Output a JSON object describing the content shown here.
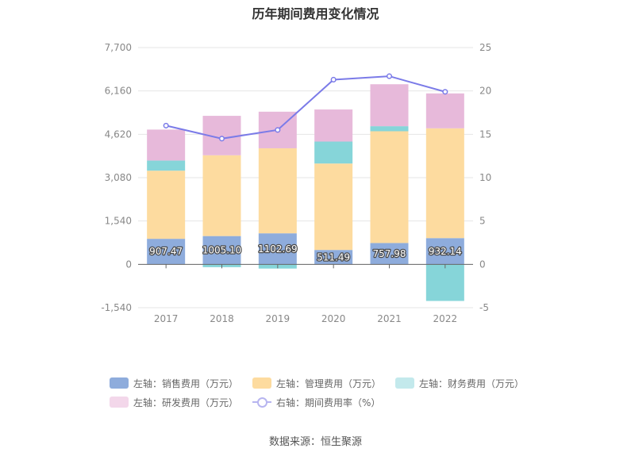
{
  "chart_data": {
    "type": "bar",
    "title": "历年期间费用变化情况",
    "categories": [
      "2017",
      "2018",
      "2019",
      "2020",
      "2021",
      "2022"
    ],
    "left_axis": {
      "ticks": [
        "7,700",
        "6,160",
        "4,620",
        "3,080",
        "1,540",
        "0",
        "-1,540"
      ],
      "ylim": [
        -1540,
        7700
      ]
    },
    "right_axis": {
      "ticks": [
        "25",
        "20",
        "15",
        "10",
        "5",
        "0",
        "-5"
      ],
      "ylim": [
        -5,
        25
      ]
    },
    "stacked": true,
    "series": [
      {
        "name": "左轴：销售费用（万元）",
        "color": "#8eacdc",
        "values": [
          907.47,
          1005.1,
          1102.69,
          511.49,
          757.98,
          932.14
        ]
      },
      {
        "name": "左轴：管理费用（万元）",
        "color": "#fddb9f",
        "values": [
          2420,
          2870,
          3020,
          3070,
          3970,
          3900
        ]
      },
      {
        "name": "左轴：财务费用（万元）",
        "color": "#86d5d9",
        "values": [
          360,
          -100,
          -150,
          780,
          180,
          -1300
        ]
      },
      {
        "name": "左轴：研发费用（万元）",
        "color": "#e7b9da",
        "values": [
          1100,
          1400,
          1300,
          1140,
          1490,
          1240
        ]
      }
    ],
    "line_series": {
      "name": "右轴：期间费用率（%）",
      "color": "#7b7be8",
      "values": [
        16.0,
        14.5,
        15.5,
        21.3,
        21.7,
        19.9
      ]
    },
    "data_labels": [
      "907.47",
      "1005.10",
      "1102.69",
      "511.49",
      "757.98",
      "932.14"
    ],
    "grid": true,
    "legend_position": "bottom"
  },
  "source": "数据来源：恒生聚源"
}
